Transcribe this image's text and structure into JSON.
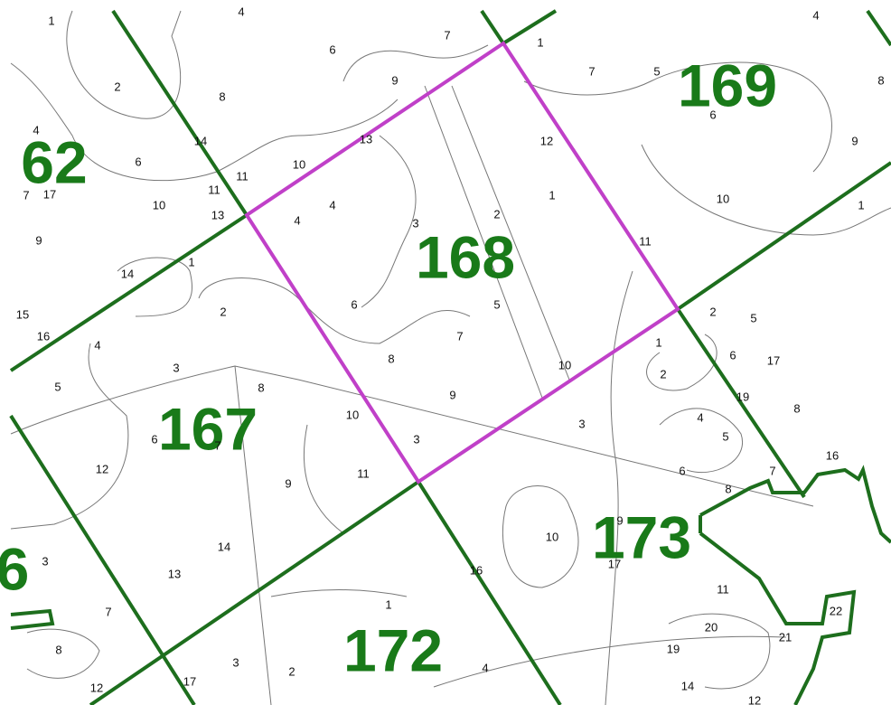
{
  "compartments": [
    "62",
    "169",
    "168",
    "167",
    "173",
    "172",
    "6"
  ],
  "stands": [
    "1",
    "4",
    "7",
    "1",
    "4",
    "6",
    "9",
    "7",
    "5",
    "8",
    "2",
    "8",
    "4",
    "6",
    "10",
    "11",
    "11",
    "6",
    "9",
    "7",
    "17",
    "10",
    "13",
    "4",
    "4",
    "3",
    "2",
    "1",
    "10",
    "1",
    "9",
    "14",
    "1",
    "15",
    "2",
    "6",
    "5",
    "2",
    "5",
    "16",
    "4",
    "7",
    "1",
    "3",
    "8",
    "6",
    "17",
    "2",
    "10",
    "5",
    "8",
    "9",
    "8",
    "10",
    "4",
    "6",
    "7",
    "3",
    "5",
    "3",
    "12",
    "9",
    "11",
    "6",
    "16",
    "7",
    "8",
    "9",
    "10",
    "3",
    "14",
    "13",
    "11",
    "1",
    "7",
    "20",
    "22",
    "21",
    "8",
    "19",
    "3",
    "2",
    "4",
    "14",
    "12",
    "12",
    "17",
    "16",
    "17",
    "13",
    "12",
    "11",
    "14",
    "19"
  ]
}
